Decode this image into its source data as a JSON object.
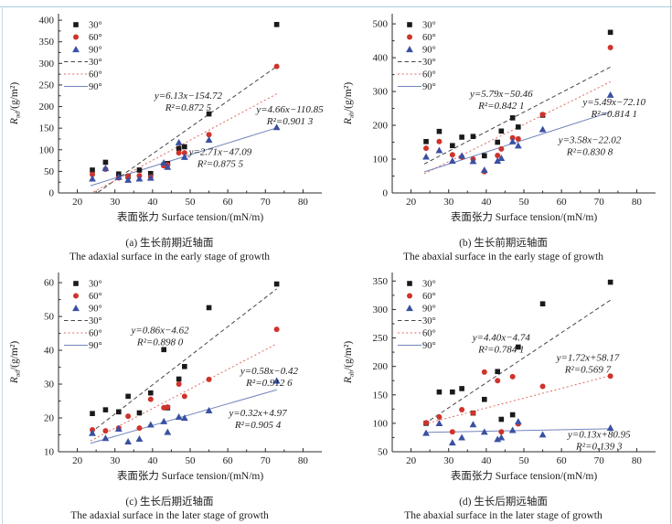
{
  "chart_data": [
    {
      "type": "scatter",
      "panel_label": "a",
      "caption_zh": "(a) 生长前期近轴面",
      "caption_en": "The adaxial surface in the early stage of growth",
      "xlabel": "表面张力 Surface tension/(mN/m)",
      "ylabel_base": "R",
      "ylabel_sub": "ad",
      "ylabel_rest": "/(g/m²)",
      "xlim": [
        15,
        85
      ],
      "ylim": [
        0,
        415
      ],
      "xticks": [
        20,
        30,
        40,
        50,
        60,
        70,
        80
      ],
      "yticks": [
        0,
        50,
        100,
        150,
        200,
        250,
        300,
        350,
        400
      ],
      "x": [
        24,
        27.5,
        31,
        33.5,
        36.5,
        39.5,
        43,
        44,
        47,
        48.5,
        55,
        73
      ],
      "series": [
        {
          "name": "30°",
          "marker": "square",
          "color": "#1a1a1a",
          "values": [
            53,
            71,
            44,
            38,
            53,
            45,
            65,
            68,
            103,
            107,
            183,
            390
          ]
        },
        {
          "name": "60°",
          "marker": "circle",
          "color": "#cf342b",
          "values": [
            43,
            55,
            35,
            38,
            40,
            37,
            63,
            65,
            93,
            93,
            135,
            293
          ]
        },
        {
          "name": "90°",
          "marker": "triangle",
          "color": "#3a50a2",
          "values": [
            33,
            57,
            37,
            30,
            33,
            35,
            70,
            60,
            117,
            83,
            123,
            152
          ]
        }
      ],
      "fits": [
        {
          "name": "30°",
          "color": "#474747",
          "dash": "4.5,3",
          "slope": 6.13,
          "intercept": -154.72,
          "x_start": 25.5,
          "x_end": 73,
          "equation": "y=6.13x−154.72",
          "r2": "R²=0.872 5",
          "label_x": 49.5,
          "label_y": 218,
          "label_color": "#1a1a1a"
        },
        {
          "name": "60°",
          "color": "#e0695f",
          "dash": "2,2.6",
          "slope": 4.66,
          "intercept": -110.85,
          "x_start": 24.3,
          "x_end": 73,
          "equation": "y=4.66x−110.85",
          "r2": "R²=0.901 3",
          "label_x": 76.5,
          "label_y": 186,
          "label_color": "#cf342b"
        },
        {
          "name": "90°",
          "color": "#7384bb",
          "dash": null,
          "slope": 2.71,
          "intercept": -47.09,
          "x_start": 23.5,
          "x_end": 73,
          "equation": "y=2.71x−47.09",
          "r2": "R²=0.875 5",
          "label_x": 58,
          "label_y": 88,
          "label_color": "#3a50a2"
        }
      ]
    },
    {
      "type": "scatter",
      "panel_label": "b",
      "caption_zh": "(b) 生长前期远轴面",
      "caption_en": "The abaxial surface in the early stage of growth",
      "xlabel": "表面张力 Surface tension/(mN/m)",
      "ylabel_base": "R",
      "ylabel_sub": "ab",
      "ylabel_rest": "/(g/m²)",
      "xlim": [
        15,
        85
      ],
      "ylim": [
        0,
        530
      ],
      "xticks": [
        20,
        30,
        40,
        50,
        60,
        70,
        80
      ],
      "yticks": [
        0,
        100,
        200,
        300,
        400,
        500
      ],
      "x": [
        24,
        27.5,
        31,
        33.5,
        36.5,
        39.5,
        43,
        44,
        47,
        48.5,
        55,
        73
      ],
      "series": [
        {
          "name": "30°",
          "marker": "square",
          "color": "#1a1a1a",
          "values": [
            152,
            182,
            140,
            165,
            167,
            110,
            150,
            183,
            222,
            195,
            230,
            475
          ]
        },
        {
          "name": "60°",
          "marker": "circle",
          "color": "#cf342b",
          "values": [
            132,
            152,
            113,
            106,
            100,
            63,
            111,
            130,
            163,
            160,
            232,
            430
          ]
        },
        {
          "name": "90°",
          "marker": "triangle",
          "color": "#3a50a2",
          "values": [
            107,
            126,
            95,
            110,
            94,
            68,
            95,
            103,
            152,
            140,
            188,
            290
          ]
        }
      ],
      "fits": [
        {
          "name": "30°",
          "color": "#474747",
          "dash": "4.5,3",
          "slope": 5.79,
          "intercept": -50.46,
          "x_start": 23.5,
          "x_end": 73,
          "equation": "y=5.79x−50.46",
          "r2": "R²=0.842 1",
          "label_x": 44,
          "label_y": 284,
          "label_color": "#1a1a1a"
        },
        {
          "name": "60°",
          "color": "#e0695f",
          "dash": "2,2.6",
          "slope": 5.49,
          "intercept": -72.1,
          "x_start": 23.5,
          "x_end": 73,
          "equation": "y=5.49x−72.10",
          "r2": "R²=0.814 1",
          "label_x": 74,
          "label_y": 260,
          "label_color": "#cf342b"
        },
        {
          "name": "90°",
          "color": "#7384bb",
          "dash": null,
          "slope": 3.58,
          "intercept": -22.02,
          "x_start": 23.5,
          "x_end": 73,
          "equation": "y=3.58x−22.02",
          "r2": "R²=0.830 8",
          "label_x": 67.5,
          "label_y": 148,
          "label_color": "#3a50a2"
        }
      ]
    },
    {
      "type": "scatter",
      "panel_label": "c",
      "caption_zh": "(c) 生长后期近轴面",
      "caption_en": "The adaxial surface in the later stage of growth",
      "xlabel": "表面张力 Surface tension/(mN/m)",
      "ylabel_base": "R",
      "ylabel_sub": "ad",
      "ylabel_rest": "/(g/m²)",
      "xlim": [
        15,
        85
      ],
      "ylim": [
        10,
        63
      ],
      "xticks": [
        20,
        30,
        40,
        50,
        60,
        70,
        80
      ],
      "yticks": [
        10,
        20,
        30,
        40,
        50,
        60
      ],
      "x": [
        24,
        27.5,
        31,
        33.5,
        36.5,
        39.5,
        43,
        44,
        47,
        48.5,
        55,
        73
      ],
      "series": [
        {
          "name": "30°",
          "marker": "square",
          "color": "#1a1a1a",
          "values": [
            21.3,
            22.4,
            21.8,
            26.4,
            21.5,
            27.4,
            40.2,
            23,
            31.5,
            35.2,
            52.6,
            59.6
          ]
        },
        {
          "name": "60°",
          "marker": "circle",
          "color": "#cf342b",
          "values": [
            16.5,
            16.2,
            17,
            20.5,
            17,
            25.5,
            23,
            23.2,
            30,
            26.4,
            31.4,
            46.2
          ]
        },
        {
          "name": "90°",
          "marker": "triangle",
          "color": "#3a50a2",
          "values": [
            15.5,
            14,
            16.8,
            13,
            13.8,
            18,
            19,
            15.8,
            20.3,
            20,
            22.2,
            31
          ]
        }
      ],
      "fits": [
        {
          "name": "30°",
          "color": "#474747",
          "dash": "4.5,3",
          "slope": 0.86,
          "intercept": -4.62,
          "x_start": 23.5,
          "x_end": 73,
          "equation": "y=0.86x−4.62",
          "r2": "R²=0.898 0",
          "label_x": 42,
          "label_y": 45,
          "label_color": "#1a1a1a"
        },
        {
          "name": "60°",
          "color": "#e0695f",
          "dash": "2,2.6",
          "slope": 0.58,
          "intercept": -0.42,
          "x_start": 23.5,
          "x_end": 73,
          "equation": "y=0.58x−0.42",
          "r2": "R²=0.912 6",
          "label_x": 71,
          "label_y": 33,
          "label_color": "#cf342b"
        },
        {
          "name": "90°",
          "color": "#7384bb",
          "dash": null,
          "slope": 0.32,
          "intercept": 4.97,
          "x_start": 23.5,
          "x_end": 73,
          "equation": "y=0.32x+4.97",
          "r2": "R²=0.905 4",
          "label_x": 68,
          "label_y": 20.5,
          "label_color": "#3a50a2"
        }
      ]
    },
    {
      "type": "scatter",
      "panel_label": "d",
      "caption_zh": "(d) 生长后期远轴面",
      "caption_en": "The abaxial surface in the later stage of growth",
      "xlabel": "表面张力 Surface tension/(mN/m)",
      "ylabel_base": "R",
      "ylabel_sub": "ab",
      "ylabel_rest": "/(g/m²)",
      "xlim": [
        15,
        85
      ],
      "ylim": [
        50,
        365
      ],
      "xticks": [
        20,
        30,
        40,
        50,
        60,
        70,
        80
      ],
      "yticks": [
        50,
        100,
        150,
        200,
        250,
        300,
        350
      ],
      "x": [
        24,
        27.5,
        31,
        33.5,
        36.5,
        39.5,
        43,
        44,
        47,
        48.5,
        55,
        73
      ],
      "series": [
        {
          "name": "30°",
          "marker": "square",
          "color": "#1a1a1a",
          "values": [
            100,
            155,
            155,
            161,
            118,
            142,
            191,
            107,
            115,
            234,
            310,
            348
          ]
        },
        {
          "name": "60°",
          "marker": "circle",
          "color": "#cf342b",
          "values": [
            101,
            111,
            85,
            124,
            118,
            190,
            175,
            85,
            182,
            99,
            165,
            183
          ]
        },
        {
          "name": "90°",
          "marker": "triangle",
          "color": "#3a50a2",
          "values": [
            83,
            100,
            66,
            75,
            98,
            85,
            72,
            75,
            88,
            103,
            80,
            92
          ]
        }
      ],
      "fits": [
        {
          "name": "30°",
          "color": "#474747",
          "dash": "4.5,3",
          "slope": 4.4,
          "intercept": -4.74,
          "x_start": 23.5,
          "x_end": 73,
          "equation": "y=4.40x−4.74",
          "r2": "R²=0.784 1",
          "label_x": 44,
          "label_y": 245,
          "label_color": "#1a1a1a"
        },
        {
          "name": "60°",
          "color": "#e0695f",
          "dash": "2,2.6",
          "slope": 1.72,
          "intercept": 58.17,
          "x_start": 23.5,
          "x_end": 73,
          "equation": "y=1.72x+58.17",
          "r2": "R²=0.569 7",
          "label_x": 67,
          "label_y": 210,
          "label_color": "#cf342b"
        },
        {
          "name": "90°",
          "color": "#7384bb",
          "dash": null,
          "slope": 0.13,
          "intercept": 80.95,
          "x_start": 23.5,
          "x_end": 73,
          "equation": "y=0.13x+80.95",
          "r2": "R²=0.139 3",
          "label_x": 70,
          "label_y": 75,
          "label_color": "#3a50a2"
        }
      ]
    }
  ]
}
